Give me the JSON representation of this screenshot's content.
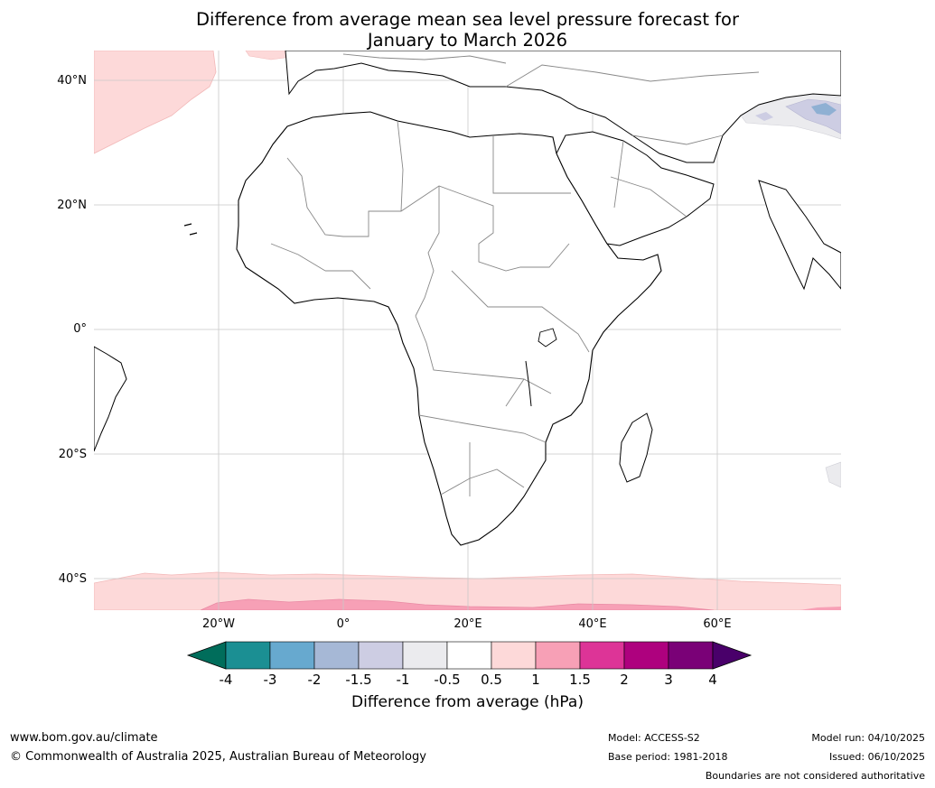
{
  "title": {
    "line1": "Difference from average mean sea level pressure forecast for",
    "line2": "January to March 2026"
  },
  "map": {
    "lat_labels": [
      "40°N",
      "20°N",
      "0°",
      "20°S",
      "40°S"
    ],
    "lat_values": [
      40,
      20,
      0,
      -20,
      -40
    ],
    "lon_labels": [
      "20°W",
      "0°",
      "20°E",
      "40°E",
      "60°E"
    ],
    "lon_values": [
      -20,
      0,
      20,
      40,
      60
    ]
  },
  "colorbar": {
    "label": "Difference from average (hPa)",
    "ticks": [
      "-4",
      "-3",
      "-2",
      "-1.5",
      "-1",
      "-0.5",
      "0.5",
      "1",
      "1.5",
      "2",
      "3",
      "4"
    ],
    "colors": [
      "#1b8f93",
      "#67a9cf",
      "#a6b8d6",
      "#cdcde3",
      "#ebebee",
      "#ffffff",
      "#fdd9d9",
      "#f7a0b6",
      "#dd3497",
      "#ae017e",
      "#7a0177"
    ],
    "under_color": "#006d5b",
    "over_color": "#49006a"
  },
  "footer": {
    "website": "www.bom.gov.au/climate",
    "copyright": "© Commonwealth of Australia 2025, Australian Bureau of Meteorology",
    "model": "Model: ACCESS-S2",
    "base_period": "Base period: 1981-2018",
    "model_run": "Model run: 04/10/2025",
    "issued": "Issued: 06/10/2025",
    "disclaimer": "Boundaries are not considered authoritative"
  }
}
